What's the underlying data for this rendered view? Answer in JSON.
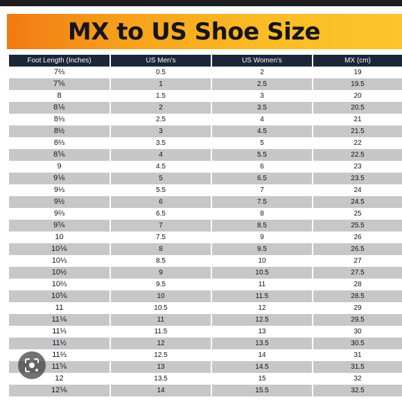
{
  "header": {
    "title": "MX to US Shoe Size"
  },
  "table": {
    "columns": [
      "Foot Length (Inches)",
      "US Men's",
      "US Women's",
      "MX (cm)"
    ],
    "rows": [
      [
        "7⅔",
        "0.5",
        "2",
        "19"
      ],
      [
        "7⅚",
        "1",
        "2.5",
        "19.5"
      ],
      [
        "8",
        "1.5",
        "3",
        "20"
      ],
      [
        "8⅙",
        "2",
        "3.5",
        "20.5"
      ],
      [
        "8⅓",
        "2.5",
        "4",
        "21"
      ],
      [
        "8½",
        "3",
        "4.5",
        "21.5"
      ],
      [
        "8⅔",
        "3.5",
        "5",
        "22"
      ],
      [
        "8⅚",
        "4",
        "5.5",
        "22.5"
      ],
      [
        "9",
        "4.5",
        "6",
        "23"
      ],
      [
        "9⅙",
        "5",
        "6.5",
        "23.5"
      ],
      [
        "9⅓",
        "5.5",
        "7",
        "24"
      ],
      [
        "9½",
        "6",
        "7.5",
        "24.5"
      ],
      [
        "9⅔",
        "6.5",
        "8",
        "25"
      ],
      [
        "9⅚",
        "7",
        "8.5",
        "25.5"
      ],
      [
        "10",
        "7.5",
        "9",
        "26"
      ],
      [
        "10⅙",
        "8",
        "9.5",
        "26.5"
      ],
      [
        "10⅓",
        "8.5",
        "10",
        "27"
      ],
      [
        "10½",
        "9",
        "10.5",
        "27.5"
      ],
      [
        "10⅔",
        "9.5",
        "11",
        "28"
      ],
      [
        "10⅚",
        "10",
        "11.5",
        "28.5"
      ],
      [
        "11",
        "10.5",
        "12",
        "29"
      ],
      [
        "11⅙",
        "11",
        "12.5",
        "29.5"
      ],
      [
        "11⅓",
        "11.5",
        "13",
        "30"
      ],
      [
        "11½",
        "12",
        "13.5",
        "30.5"
      ],
      [
        "11⅔",
        "12.5",
        "14",
        "31"
      ],
      [
        "11⅚",
        "13",
        "14.5",
        "31.5"
      ],
      [
        "12",
        "13.5",
        "15",
        "32"
      ],
      [
        "12⅙",
        "14",
        "15.5",
        "32.5"
      ]
    ]
  },
  "overlay": {
    "icon": "lens-icon"
  }
}
